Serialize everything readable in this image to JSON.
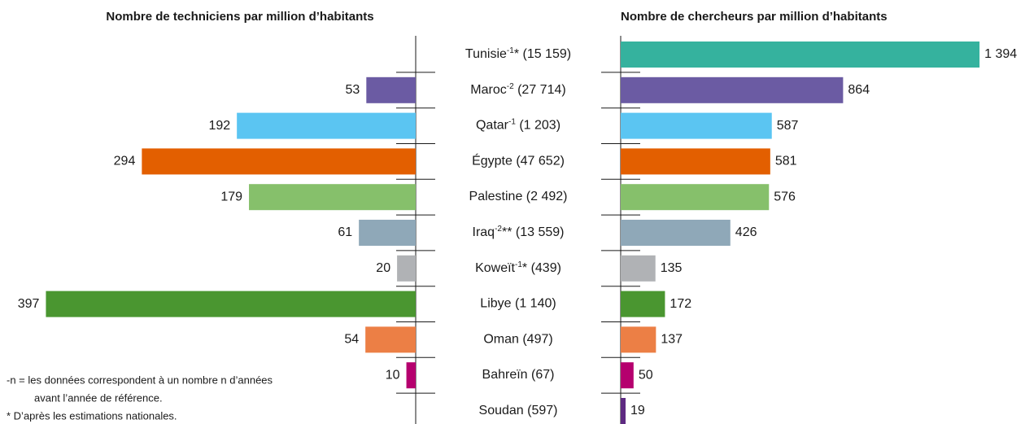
{
  "chart_data": [
    {
      "type": "bar",
      "orientation": "horizontal",
      "direction": "left",
      "title": "Nombre de techniciens par million d’habitants",
      "categories": [
        "Tunisie",
        "Maroc",
        "Qatar",
        "Égypte",
        "Palestine",
        "Iraq",
        "Koweït",
        "Libye",
        "Oman",
        "Bahreïn",
        "Soudan"
      ],
      "category_notes": [
        {
          "sup": "-1",
          "text": "* (15 159)"
        },
        {
          "sup": "-2",
          "text": " (27 714)"
        },
        {
          "sup": "-1",
          "text": " (1 203)"
        },
        {
          "text": " (47 652)"
        },
        {
          "text": " (2 492)"
        },
        {
          "sup": "-2",
          "text": "** (13 559)"
        },
        {
          "sup": "-1",
          "text": "* (439)"
        },
        {
          "text": " (1 140)"
        },
        {
          "text": " (497)"
        },
        {
          "text": " (67)"
        },
        {
          "text": " (597)"
        }
      ],
      "values": [
        null,
        53,
        192,
        294,
        179,
        61,
        20,
        397,
        54,
        10,
        null
      ],
      "colors": [
        "#35b29e",
        "#6b5ba3",
        "#5bc5f2",
        "#e35f00",
        "#86c06b",
        "#8fa8b8",
        "#b0b2b5",
        "#4a9630",
        "#ec7f45",
        "#b5006e",
        "#5e2a82"
      ],
      "xlim": [
        0,
        400
      ]
    },
    {
      "type": "bar",
      "orientation": "horizontal",
      "direction": "right",
      "title": "Nombre de chercheurs par million d’habitants",
      "values": [
        1394,
        864,
        587,
        581,
        576,
        426,
        135,
        172,
        137,
        50,
        19
      ],
      "value_labels": [
        "1 394",
        "864",
        "587",
        "581",
        "576",
        "426",
        "135",
        "172",
        "137",
        "50",
        "19"
      ],
      "colors": [
        "#35b29e",
        "#6b5ba3",
        "#5bc5f2",
        "#e35f00",
        "#86c06b",
        "#8fa8b8",
        "#b0b2b5",
        "#4a9630",
        "#ec7f45",
        "#b5006e",
        "#5e2a82"
      ],
      "xlim": [
        0,
        1400
      ]
    }
  ],
  "footnotes": [
    "-n = les données correspondent à un nombre n d’années",
    "avant l’année de référence.",
    "* D’après les estimations nationales."
  ]
}
